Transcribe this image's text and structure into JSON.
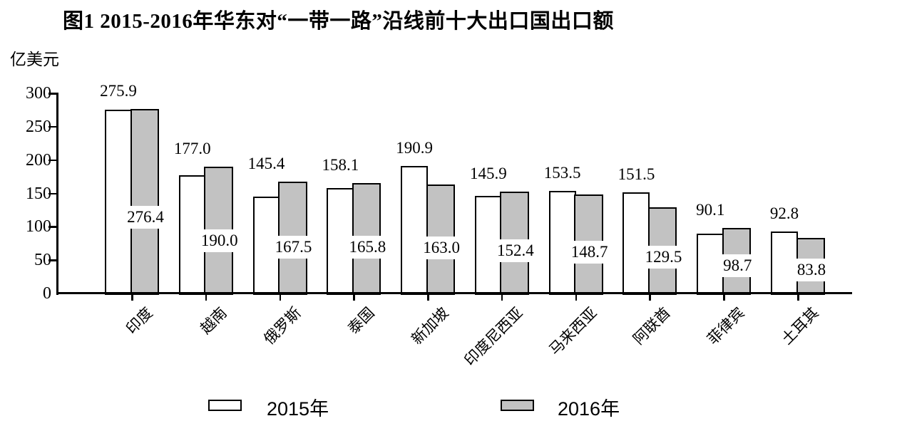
{
  "chart_data": {
    "type": "bar",
    "title": "图1 2015-2016年华东对“一带一路”沿线前十大出口国出口额",
    "unit_label": "亿美元",
    "categories": [
      "印度",
      "越南",
      "俄罗斯",
      "泰国",
      "新加坡",
      "印度尼西亚",
      "马来西亚",
      "阿联酋",
      "菲律宾",
      "土耳其"
    ],
    "series": [
      {
        "name": "2015年",
        "fill": "#ffffff",
        "values": [
          275.9,
          177.0,
          145.4,
          158.1,
          190.9,
          145.9,
          153.5,
          151.5,
          90.1,
          92.8
        ],
        "value_labels": [
          "275.9",
          "177.0",
          "145.4",
          "158.1",
          "190.9",
          "145.9",
          "153.5",
          "151.5",
          "90.1",
          "92.8"
        ]
      },
      {
        "name": "2016年",
        "fill": "#c2c2c2",
        "values": [
          276.4,
          190.0,
          167.5,
          165.8,
          163.0,
          152.4,
          148.7,
          129.5,
          98.7,
          83.8
        ],
        "value_labels": [
          "276.4",
          "190.0",
          "167.5",
          "165.8",
          "163.0",
          "152.4",
          "148.7",
          "129.5",
          "98.7",
          "83.8"
        ]
      }
    ],
    "y_axis": {
      "min": 0,
      "max": 300,
      "ticks": [
        0,
        50,
        100,
        150,
        200,
        250,
        300
      ]
    },
    "legend": [
      {
        "label": "2015年",
        "fill": "#ffffff"
      },
      {
        "label": "2016年",
        "fill": "#c2c2c2"
      }
    ],
    "layout_hints": {
      "grid": false,
      "legend_position": "bottom",
      "bar_outline": "#000000",
      "xlabel_rotation_deg": -45
    }
  }
}
